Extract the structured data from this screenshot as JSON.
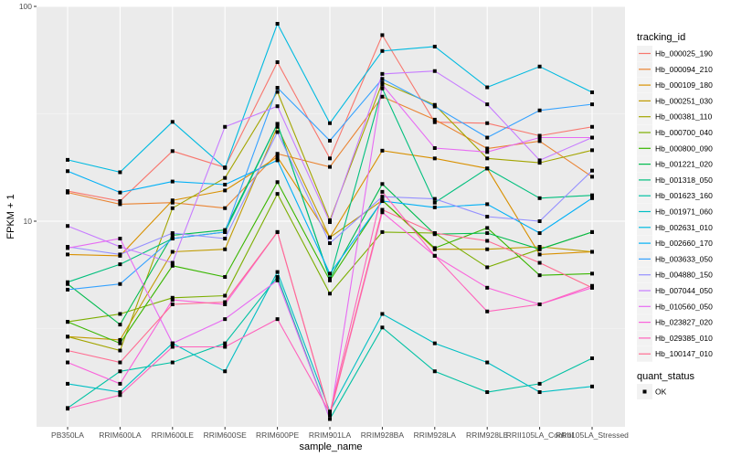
{
  "chart_data": {
    "type": "line",
    "title": "",
    "xlabel": "sample_name",
    "ylabel": "FPKM + 1",
    "y_scale": "log10",
    "ylim": [
      1.2,
      100
    ],
    "y_ticks": [
      {
        "value": 10,
        "label": "10"
      },
      {
        "value": 100,
        "label": "100"
      }
    ],
    "y_minor_gridlines": [
      3.16,
      31.6
    ],
    "grid": true,
    "categories": [
      "PB350LA",
      "RRIM600LA",
      "RRIM600LE",
      "RRIM600SE",
      "RRIM600PE",
      "RRIM901LA",
      "RRIM928BA",
      "RRIM928LA",
      "RRIM928LE",
      "RRII105LA_Control",
      "RRII105LA_Stressed"
    ],
    "legend": {
      "placement": "right",
      "color_title": "tracking_id",
      "shape_title": "quant_status",
      "shape_entries": [
        {
          "label": "OK",
          "marker": "square"
        }
      ]
    },
    "series": [
      {
        "name": "Hb_000025_190",
        "color": "#F8766D",
        "values": [
          13.8,
          12.4,
          21.2,
          17.8,
          55.0,
          19.6,
          73.5,
          28.9,
          28.6,
          25.0,
          27.5
        ]
      },
      {
        "name": "Hb_000094_210",
        "color": "#EA8331",
        "values": [
          13.6,
          12.0,
          12.2,
          11.5,
          20.6,
          17.9,
          38.0,
          29.7,
          21.8,
          23.6,
          16.1
        ]
      },
      {
        "name": "Hb_000109_180",
        "color": "#D89000",
        "values": [
          7.0,
          6.9,
          12.5,
          13.9,
          19.9,
          8.4,
          21.3,
          19.6,
          17.6,
          7.0,
          7.2
        ]
      },
      {
        "name": "Hb_000251_030",
        "color": "#C09B00",
        "values": [
          2.9,
          2.8,
          7.2,
          7.4,
          27.5,
          8.4,
          12.5,
          7.4,
          7.4,
          7.6,
          7.2
        ]
      },
      {
        "name": "Hb_000381_110",
        "color": "#A3A500",
        "values": [
          2.9,
          2.5,
          11.5,
          15.9,
          40.0,
          10.1,
          44.2,
          34.8,
          19.6,
          18.7,
          21.4
        ]
      },
      {
        "name": "Hb_000700_040",
        "color": "#7CAE00",
        "values": [
          3.4,
          3.7,
          4.4,
          4.5,
          13.4,
          4.6,
          8.9,
          8.8,
          6.1,
          7.4,
          8.9
        ]
      },
      {
        "name": "Hb_000800_090",
        "color": "#39B600",
        "values": [
          3.4,
          2.7,
          6.2,
          5.5,
          15.2,
          5.3,
          12.5,
          7.5,
          9.3,
          5.6,
          5.7
        ]
      },
      {
        "name": "Hb_001221_020",
        "color": "#00BB4E",
        "values": [
          5.1,
          3.3,
          8.6,
          9.1,
          28.4,
          5.4,
          14.9,
          8.7,
          8.8,
          7.4,
          8.9
        ]
      },
      {
        "name": "Hb_001318_050",
        "color": "#00BF7D",
        "values": [
          5.2,
          6.3,
          8.3,
          8.9,
          28.4,
          5.4,
          41.5,
          12.2,
          17.6,
          12.8,
          13.2
        ]
      },
      {
        "name": "Hb_001623_160",
        "color": "#00C1A3",
        "values": [
          1.35,
          2.0,
          2.2,
          2.7,
          5.5,
          1.2,
          3.2,
          2.0,
          1.6,
          1.75,
          2.3
        ]
      },
      {
        "name": "Hb_001971_060",
        "color": "#00BFC4",
        "values": [
          1.75,
          1.6,
          2.7,
          2.0,
          5.8,
          1.3,
          3.7,
          2.7,
          2.2,
          1.6,
          1.7
        ]
      },
      {
        "name": "Hb_002631_010",
        "color": "#00BAE0",
        "values": [
          19.3,
          16.9,
          29.0,
          17.7,
          83.0,
          28.6,
          62.0,
          65.0,
          42.0,
          52.5,
          39.8
        ]
      },
      {
        "name": "Hb_002660_170",
        "color": "#00B0F6",
        "values": [
          17.1,
          13.6,
          15.3,
          14.8,
          19.2,
          5.7,
          12.4,
          11.6,
          12.0,
          8.8,
          12.8
        ]
      },
      {
        "name": "Hb_003633_050",
        "color": "#35A2FF",
        "values": [
          4.8,
          5.1,
          8.3,
          8.9,
          41.8,
          23.7,
          46.0,
          34.2,
          24.5,
          32.8,
          35.0
        ]
      },
      {
        "name": "Hb_004880_150",
        "color": "#9590FF",
        "values": [
          7.6,
          7.0,
          8.8,
          8.3,
          26.0,
          7.9,
          13.0,
          12.7,
          10.5,
          10.0,
          17.2
        ]
      },
      {
        "name": "Hb_007044_050",
        "color": "#C77CFF",
        "values": [
          9.5,
          7.6,
          6.4,
          27.5,
          34.3,
          9.9,
          48.5,
          50.0,
          35.0,
          19.2,
          24.5
        ]
      },
      {
        "name": "Hb_010560_050",
        "color": "#E76BF3",
        "values": [
          7.5,
          8.3,
          2.7,
          3.5,
          5.3,
          1.2,
          43.2,
          21.9,
          21.0,
          24.5,
          24.5
        ]
      },
      {
        "name": "Hb_023827_020",
        "color": "#FA62DB",
        "values": [
          2.2,
          1.75,
          4.3,
          4.1,
          8.9,
          1.25,
          11.0,
          6.9,
          4.9,
          4.1,
          4.9
        ]
      },
      {
        "name": "Hb_029385_010",
        "color": "#FF62BC",
        "values": [
          1.34,
          1.55,
          2.6,
          2.6,
          3.5,
          1.28,
          13.7,
          6.9,
          3.8,
          4.1,
          5.0
        ]
      },
      {
        "name": "Hb_100147_010",
        "color": "#FF6C91",
        "values": [
          2.5,
          2.2,
          4.1,
          4.2,
          8.9,
          1.26,
          11.3,
          8.8,
          8.1,
          6.4,
          4.9
        ]
      }
    ]
  }
}
